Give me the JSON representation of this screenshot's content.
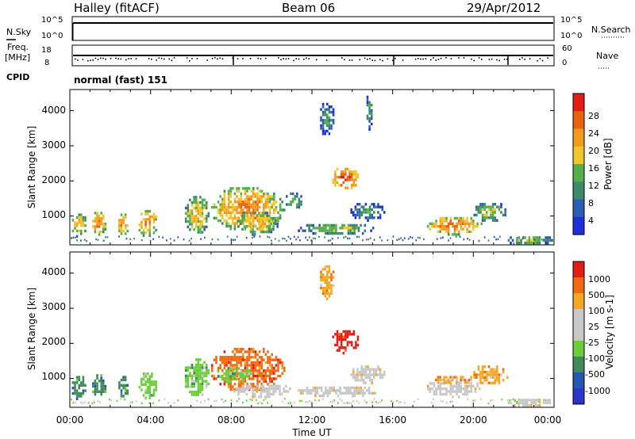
{
  "header": {
    "station": "Halley (fitACF)",
    "beam": "Beam 06",
    "date": "29/Apr/2012"
  },
  "top_panels": {
    "nsky_label": "N.Sky",
    "nsearch_label": "N.Search",
    "nsky_ticks": [
      "10^5",
      "10^0"
    ],
    "nsearch_ticks": [
      "10^5",
      "10^0"
    ],
    "freq_label_1": "Freq.",
    "freq_label_2": "[MHz]",
    "freq_ticks": [
      "18",
      "8"
    ],
    "nave_label": "Nave",
    "nave_ticks": [
      "60",
      "0"
    ],
    "cpid_label": "CPID",
    "cpid_value": "normal (fast) 151"
  },
  "colors": {
    "power": [
      "#1f2fd9",
      "#2a5db3",
      "#3c8a6a",
      "#55b04a",
      "#f0c62a",
      "#f39a1e",
      "#e8620f",
      "#e21d14"
    ],
    "velocity": [
      "#e21d14",
      "#f26a10",
      "#f5a722",
      "#c8c8c8",
      "#c8c8c8",
      "#6bcf3a",
      "#3f8a58",
      "#2555b5",
      "#2a36c9"
    ]
  },
  "chart_data": [
    {
      "type": "heatmap",
      "name": "power",
      "xlabel": "Time UT",
      "ylabel": "Slant Range [km]",
      "xlim": [
        0,
        24
      ],
      "ylim": [
        180,
        4600
      ],
      "y_ticks": [
        "4000",
        "3000",
        "2000",
        "1000"
      ],
      "colorbar_label": "Power [dB]",
      "colorbar_ticks": [
        "28",
        "24",
        "20",
        "16",
        "12",
        "8",
        "4"
      ],
      "patches": [
        {
          "t0": 0.0,
          "t1": 0.8,
          "r0": 450,
          "r1": 1150,
          "level": 3
        },
        {
          "t0": 1.0,
          "t1": 1.8,
          "r0": 500,
          "r1": 1200,
          "level": 4
        },
        {
          "t0": 2.3,
          "t1": 2.9,
          "r0": 500,
          "r1": 1150,
          "level": 4
        },
        {
          "t0": 3.3,
          "t1": 4.3,
          "r0": 450,
          "r1": 1250,
          "level": 4
        },
        {
          "t0": 5.6,
          "t1": 6.9,
          "r0": 500,
          "r1": 1650,
          "level": 3
        },
        {
          "t0": 6.9,
          "t1": 10.6,
          "r0": 600,
          "r1": 1900,
          "level": 4
        },
        {
          "t0": 8.2,
          "t1": 10.3,
          "r0": 500,
          "r1": 1200,
          "level": 3
        },
        {
          "t0": 10.6,
          "t1": 11.5,
          "r0": 1200,
          "r1": 1750,
          "level": 2
        },
        {
          "t0": 12.3,
          "t1": 13.1,
          "r0": 3300,
          "r1": 4300,
          "level": 1
        },
        {
          "t0": 12.9,
          "t1": 14.3,
          "r0": 1750,
          "r1": 2450,
          "level": 5
        },
        {
          "t0": 11.2,
          "t1": 15.2,
          "r0": 500,
          "r1": 850,
          "level": 2
        },
        {
          "t0": 13.8,
          "t1": 15.6,
          "r0": 900,
          "r1": 1450,
          "level": 1
        },
        {
          "t0": 14.6,
          "t1": 15.0,
          "r0": 3500,
          "r1": 4500,
          "level": 1
        },
        {
          "t0": 17.6,
          "t1": 20.4,
          "r0": 500,
          "r1": 1050,
          "level": 4
        },
        {
          "t0": 19.9,
          "t1": 21.7,
          "r0": 850,
          "r1": 1450,
          "level": 2
        },
        {
          "t0": 21.6,
          "t1": 23.9,
          "r0": 200,
          "r1": 500,
          "level": 2
        }
      ]
    },
    {
      "type": "heatmap",
      "name": "velocity",
      "xlabel": "Time UT",
      "ylabel": "Slant Range [km]",
      "xlim": [
        0,
        24
      ],
      "ylim": [
        180,
        4600
      ],
      "x_ticks": [
        "00:00",
        "04:00",
        "08:00",
        "12:00",
        "16:00",
        "20:00",
        "00:00"
      ],
      "y_ticks": [
        "4000",
        "3000",
        "2000",
        "1000"
      ],
      "colorbar_label": "Velocity [m s-1]",
      "colorbar_ticks": [
        "1000",
        "500",
        "100",
        "25",
        "-25",
        "-100",
        "-500",
        "-1000"
      ],
      "patches": [
        {
          "t0": 0.0,
          "t1": 0.8,
          "r0": 450,
          "r1": 1150,
          "level": 6
        },
        {
          "t0": 1.0,
          "t1": 1.8,
          "r0": 500,
          "r1": 1200,
          "level": 6
        },
        {
          "t0": 2.3,
          "t1": 2.9,
          "r0": 500,
          "r1": 1150,
          "level": 6
        },
        {
          "t0": 3.3,
          "t1": 4.3,
          "r0": 450,
          "r1": 1250,
          "level": 5
        },
        {
          "t0": 5.6,
          "t1": 6.9,
          "r0": 500,
          "r1": 1650,
          "level": 5
        },
        {
          "t0": 6.9,
          "t1": 10.6,
          "r0": 650,
          "r1": 1950,
          "level": 1
        },
        {
          "t0": 7.2,
          "t1": 9.0,
          "r0": 900,
          "r1": 1400,
          "level": 5
        },
        {
          "t0": 8.0,
          "t1": 11.0,
          "r0": 500,
          "r1": 900,
          "level": 3
        },
        {
          "t0": 12.3,
          "t1": 13.1,
          "r0": 3300,
          "r1": 4300,
          "level": 2
        },
        {
          "t0": 12.9,
          "t1": 14.3,
          "r0": 1750,
          "r1": 2450,
          "level": 0
        },
        {
          "t0": 11.2,
          "t1": 15.2,
          "r0": 500,
          "r1": 850,
          "level": 3
        },
        {
          "t0": 13.8,
          "t1": 15.6,
          "r0": 900,
          "r1": 1450,
          "level": 3
        },
        {
          "t0": 17.6,
          "t1": 20.4,
          "r0": 500,
          "r1": 1050,
          "level": 3
        },
        {
          "t0": 18.0,
          "t1": 20.0,
          "r0": 850,
          "r1": 1150,
          "level": 2
        },
        {
          "t0": 19.9,
          "t1": 21.7,
          "r0": 850,
          "r1": 1450,
          "level": 2
        },
        {
          "t0": 21.6,
          "t1": 23.9,
          "r0": 200,
          "r1": 500,
          "level": 3
        }
      ]
    }
  ]
}
